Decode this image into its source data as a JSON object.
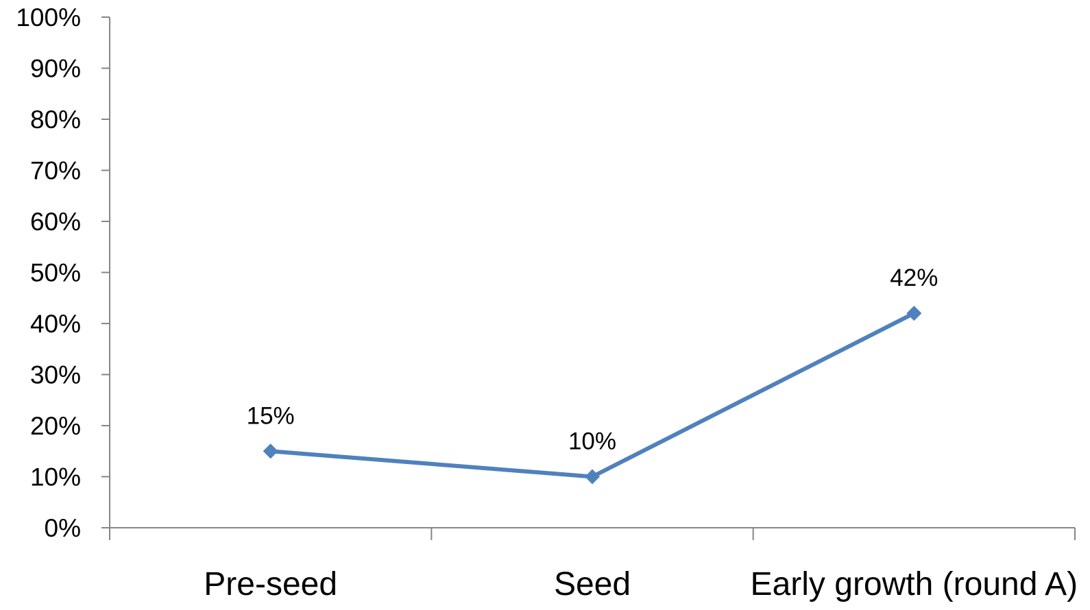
{
  "chart_data": {
    "type": "line",
    "title": "",
    "xlabel": "",
    "ylabel": "",
    "categories": [
      "Pre-seed",
      "Seed",
      "Early growth (round A)"
    ],
    "series": [
      {
        "values": [
          15,
          10,
          42
        ],
        "color": "#4F81BD"
      }
    ],
    "data_labels": [
      "15%",
      "10%",
      "42%"
    ],
    "ylim": [
      0,
      100
    ],
    "y_ticks": [
      0,
      10,
      20,
      30,
      40,
      50,
      60,
      70,
      80,
      90,
      100
    ],
    "y_tick_labels": [
      "0%",
      "10%",
      "20%",
      "30%",
      "40%",
      "50%",
      "60%",
      "70%",
      "80%",
      "90%",
      "100%"
    ],
    "grid": false,
    "legend": "none",
    "marker": "diamond",
    "axis_color": "#868686"
  }
}
